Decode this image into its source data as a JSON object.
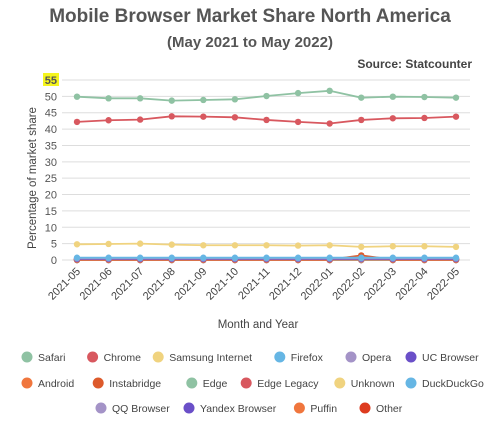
{
  "chart_data": {
    "type": "line",
    "title": "Mobile Browser Market Share North America",
    "subtitle": "(May 2021 to May 2022)",
    "source": "Source: Statcounter",
    "xlabel": "Month and Year",
    "ylabel": "Percentage of market share",
    "ylim": [
      0,
      55
    ],
    "yticks": [
      0,
      5,
      10,
      15,
      20,
      25,
      30,
      35,
      40,
      45,
      50,
      55
    ],
    "highlight_ytick": "55",
    "grid": true,
    "legend_position": "bottom",
    "categories": [
      "2021-05",
      "2021-06",
      "2021-07",
      "2021-08",
      "2021-09",
      "2021-10",
      "2021-11",
      "2021-12",
      "2022-01",
      "2022-02",
      "2022-03",
      "2022-04",
      "2022-05"
    ],
    "series": [
      {
        "name": "Safari",
        "color": "#8fc2a3",
        "values": [
          49.9,
          49.4,
          49.4,
          48.7,
          48.9,
          49.1,
          50.1,
          51.0,
          51.7,
          49.6,
          49.9,
          49.8,
          49.6
        ]
      },
      {
        "name": "Chrome",
        "color": "#d8585f",
        "values": [
          42.2,
          42.7,
          42.9,
          43.9,
          43.8,
          43.6,
          42.8,
          42.2,
          41.7,
          42.8,
          43.3,
          43.4,
          43.8
        ]
      },
      {
        "name": "Samsung Internet",
        "color": "#f0d37f",
        "values": [
          4.8,
          4.9,
          5.0,
          4.7,
          4.5,
          4.5,
          4.5,
          4.4,
          4.5,
          4.0,
          4.2,
          4.2,
          4.0
        ]
      },
      {
        "name": "Firefox",
        "color": "#66b6e4",
        "values": [
          0.7,
          0.7,
          0.7,
          0.7,
          0.7,
          0.7,
          0.7,
          0.7,
          0.7,
          0.7,
          0.7,
          0.7,
          0.7
        ]
      },
      {
        "name": "Opera",
        "color": "#a493c7",
        "values": [
          0.5,
          0.5,
          0.5,
          0.5,
          0.5,
          0.5,
          0.5,
          0.5,
          0.5,
          0.5,
          0.5,
          0.5,
          0.5
        ]
      },
      {
        "name": "UC Browser",
        "color": "#6a4fc8",
        "values": [
          0.3,
          0.3,
          0.3,
          0.3,
          0.3,
          0.3,
          0.3,
          0.3,
          0.3,
          0.3,
          0.3,
          0.3,
          0.3
        ]
      },
      {
        "name": "Android",
        "color": "#f0763d",
        "values": [
          0.2,
          0.2,
          0.2,
          0.2,
          0.2,
          0.2,
          0.2,
          0.2,
          0.2,
          0.2,
          0.2,
          0.2,
          0.2
        ]
      },
      {
        "name": "Instabridge",
        "color": "#dd5a2b",
        "values": [
          0.1,
          0.1,
          0.1,
          0.1,
          0.1,
          0.1,
          0.1,
          0.1,
          0.1,
          1.4,
          0.1,
          0.1,
          0.1
        ]
      },
      {
        "name": "Edge",
        "color": "#8fc2a3",
        "values": [
          0.1,
          0.1,
          0.1,
          0.1,
          0.1,
          0.1,
          0.1,
          0.1,
          0.1,
          0.1,
          0.1,
          0.1,
          0.1
        ]
      },
      {
        "name": "Edge Legacy",
        "color": "#d8585f",
        "values": [
          0.0,
          0.0,
          0.0,
          0.0,
          0.0,
          0.0,
          0.0,
          0.0,
          0.0,
          0.0,
          0.0,
          0.0,
          0.0
        ]
      },
      {
        "name": "Unknown",
        "color": "#f0d37f",
        "values": [
          0.0,
          0.0,
          0.0,
          0.0,
          0.0,
          0.0,
          0.0,
          0.0,
          0.0,
          0.0,
          0.0,
          0.0,
          0.0
        ]
      },
      {
        "name": "DuckDuckGo",
        "color": "#66b6e4",
        "values": [
          0.0,
          0.0,
          0.0,
          0.0,
          0.0,
          0.0,
          0.0,
          0.0,
          0.0,
          0.0,
          0.0,
          0.0,
          0.0
        ]
      },
      {
        "name": "QQ Browser",
        "color": "#a493c7",
        "values": [
          0.0,
          0.0,
          0.0,
          0.0,
          0.0,
          0.0,
          0.0,
          0.0,
          0.0,
          0.0,
          0.0,
          0.0,
          0.0
        ]
      },
      {
        "name": "Yandex Browser",
        "color": "#6a4fc8",
        "values": [
          0.0,
          0.0,
          0.0,
          0.0,
          0.0,
          0.0,
          0.0,
          0.0,
          0.0,
          0.0,
          0.0,
          0.0,
          0.0
        ]
      },
      {
        "name": "Puffin",
        "color": "#f0763d",
        "values": [
          0.0,
          0.0,
          0.0,
          0.0,
          0.0,
          0.0,
          0.0,
          0.0,
          0.0,
          0.0,
          0.0,
          0.0,
          0.0
        ]
      },
      {
        "name": "Other",
        "color": "#dd3b1f",
        "values": [
          0.2,
          0.2,
          0.2,
          0.2,
          0.2,
          0.2,
          0.2,
          0.2,
          0.2,
          0.2,
          0.2,
          0.2,
          0.2
        ]
      }
    ]
  }
}
